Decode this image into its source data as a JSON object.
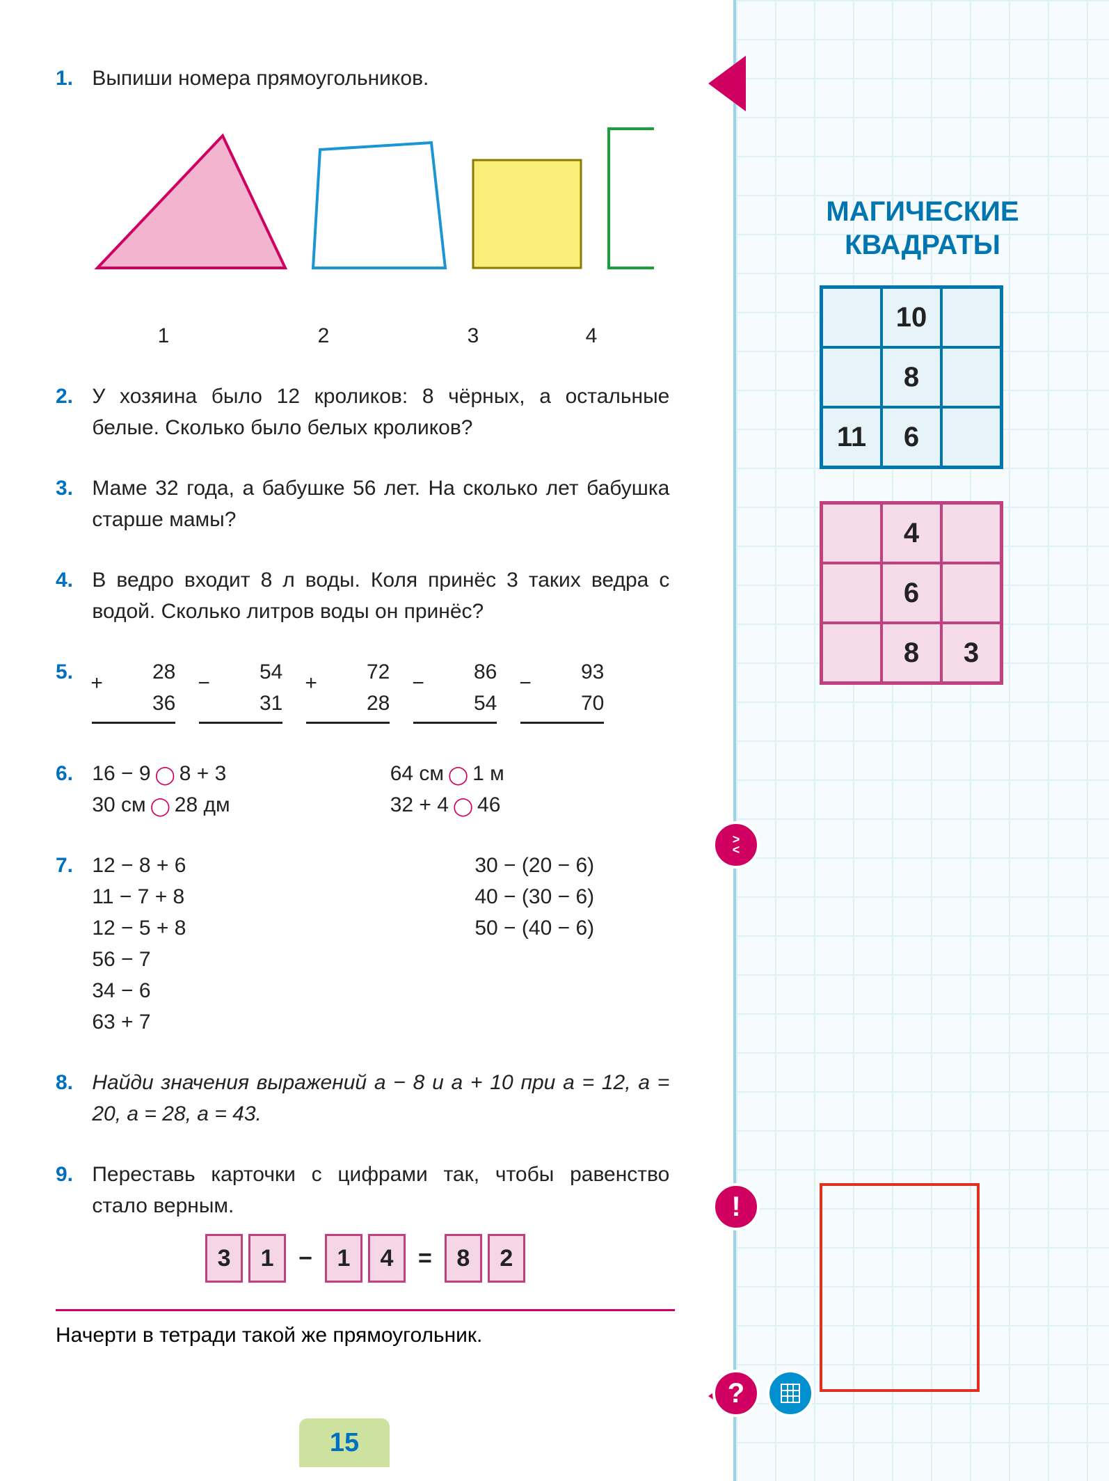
{
  "page_number": "15",
  "problems": {
    "p1": {
      "num": "1.",
      "text": "Выпиши номера прямоугольников."
    },
    "p2": {
      "num": "2.",
      "text": "У хозяина было 12 кроликов: 8 чёрных, а остальные белые. Сколько было белых кроликов?"
    },
    "p3": {
      "num": "3.",
      "text": "Маме 32 года, а бабушке 56 лет. На сколько лет бабушка старше мамы?"
    },
    "p4": {
      "num": "4.",
      "text": "В ведро входит 8 л воды. Коля принёс 3 таких ведра с водой. Сколько литров воды он принёс?"
    },
    "p5": {
      "num": "5."
    },
    "p6": {
      "num": "6."
    },
    "p7": {
      "num": "7."
    },
    "p8": {
      "num": "8.",
      "text": "Найди значения выражений a − 8 и a + 10 при a = 12, a = 20, a = 28, a = 43."
    },
    "p9": {
      "num": "9.",
      "text": "Переставь карточки с цифрами так, чтобы равенство стало верным."
    },
    "bottom": "Начерти в тетради такой же прямоугольник."
  },
  "shapes": {
    "labels": [
      "1",
      "2",
      "3",
      "4"
    ],
    "colors": {
      "triangle_fill": "#f2b4ce",
      "triangle_stroke": "#d00060",
      "quad_stroke": "#1a96d4",
      "square_fill": "#faed7a",
      "square_stroke": "#8a7a00",
      "rect_stroke": "#1aa038"
    }
  },
  "p5_cols": [
    {
      "op": "+",
      "a": "28",
      "b": "36"
    },
    {
      "op": "−",
      "a": "54",
      "b": "31"
    },
    {
      "op": "+",
      "a": "72",
      "b": "28"
    },
    {
      "op": "−",
      "a": "86",
      "b": "54"
    },
    {
      "op": "−",
      "a": "93",
      "b": "70"
    }
  ],
  "p6": {
    "r1a": "16 − 9",
    "r1b": "8 + 3",
    "r2a": "30 см",
    "r2b": "28 дм",
    "r1c": "64 см",
    "r1d": "1 м",
    "r2c": "32 + 4",
    "r2d": "46"
  },
  "p7": {
    "c1": [
      "12 − 8 + 6",
      "11 − 7 + 8",
      "12 − 5 + 8"
    ],
    "c2": [
      "30 − (20 − 6)",
      "40 − (30 − 6)",
      "50 − (40 − 6)"
    ],
    "c3": [
      "56 − 7",
      "34 − 6",
      "63 + 7"
    ]
  },
  "p9_cards": [
    "3",
    "1",
    "−",
    "1",
    "4",
    "=",
    "8",
    "2"
  ],
  "sidebar": {
    "title1": "МАГИЧЕСКИЕ",
    "title2": "КВАДРАТЫ",
    "sq1": [
      "",
      "10",
      "",
      "",
      "8",
      "",
      "11",
      "6",
      ""
    ],
    "sq2": [
      "",
      "4",
      "",
      "",
      "6",
      "",
      "",
      "8",
      "3"
    ]
  }
}
